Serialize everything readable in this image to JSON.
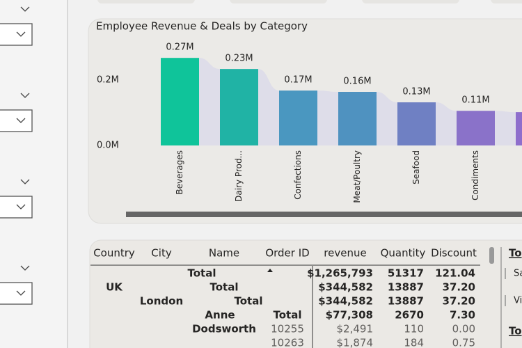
{
  "chart_data": {
    "type": "bar",
    "title": "Employee Revenue & Deals by Category",
    "categories": [
      "Beverages",
      "Dairy Prod...",
      "Confections",
      "Meat/Poultry",
      "Seafood",
      "Condiments",
      null
    ],
    "values": [
      268000,
      234000,
      168000,
      164000,
      132000,
      106000,
      102000
    ],
    "value_labels": [
      "0.27M",
      "0.23M",
      "0.17M",
      "0.16M",
      "0.13M",
      "0.11M",
      null
    ],
    "colors": [
      "#0fc49a",
      "#20b3a5",
      "#4a97c0",
      "#4f92c0",
      "#6f80c3",
      "#8a72c9",
      "#8e6ecc"
    ],
    "ribbon_color": "#dedde9",
    "ylim": [
      0,
      328000
    ],
    "yticks": [
      {
        "value": 0,
        "label": "0.0M"
      },
      {
        "value": 200000,
        "label": "0.2M"
      }
    ],
    "grid": false
  },
  "table": {
    "header": [
      "Country",
      "City",
      "Name",
      "Order ID",
      "revenue",
      "Quantity",
      "Discount"
    ],
    "rows": [
      {
        "labels": [
          "Total"
        ],
        "values": [
          "$1,265,793",
          "51317",
          "121.04"
        ]
      },
      {
        "labels": [
          "UK",
          "Total"
        ],
        "values": [
          "$344,582",
          "13887",
          "37.20"
        ]
      },
      {
        "labels": [
          "London",
          "Total"
        ],
        "values": [
          "$344,582",
          "13887",
          "37.20"
        ]
      },
      {
        "labels": [
          "Anne",
          "Total"
        ],
        "values": [
          "$77,308",
          "2670",
          "7.30"
        ]
      },
      {
        "labels": [
          "Dodsworth",
          "10255"
        ],
        "values": [
          "$2,491",
          "110",
          "0.00"
        ]
      },
      {
        "labels": [
          "10263"
        ],
        "values": [
          "$1,874",
          "184",
          "0.75"
        ]
      }
    ]
  },
  "side_panel": {
    "heading": "Top",
    "items": [
      "Sa",
      "Vi"
    ],
    "heading2": "Top"
  }
}
